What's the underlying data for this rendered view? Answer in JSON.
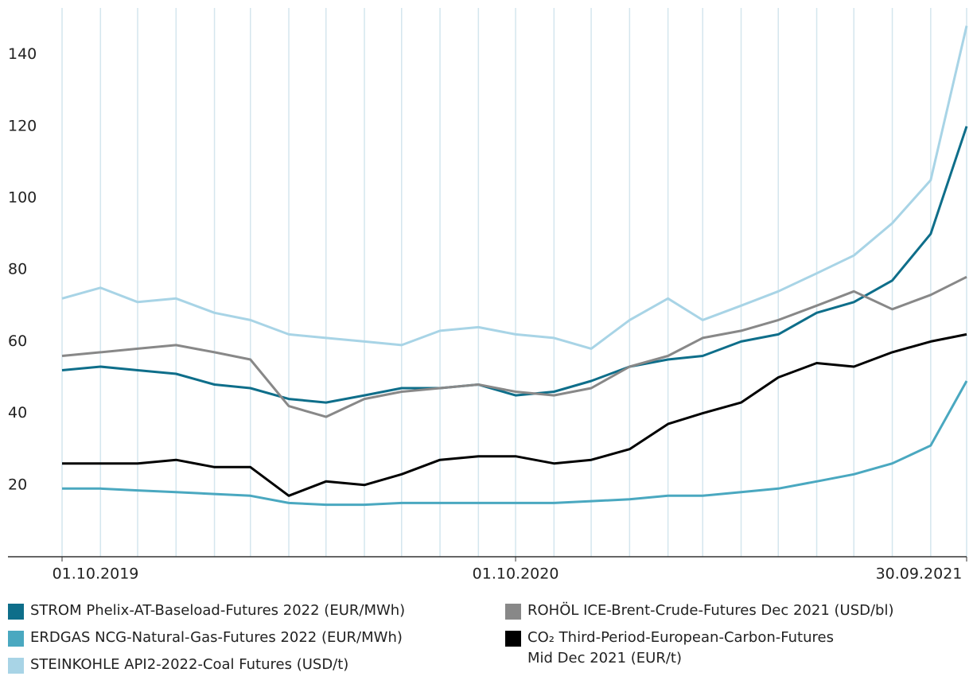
{
  "chart_data": {
    "type": "line",
    "x": [
      "01.10.2019",
      "01.11.2019",
      "01.12.2019",
      "01.01.2020",
      "01.02.2020",
      "01.03.2020",
      "01.04.2020",
      "01.05.2020",
      "01.06.2020",
      "01.07.2020",
      "01.08.2020",
      "01.09.2020",
      "01.10.2020",
      "01.11.2020",
      "01.12.2020",
      "01.01.2021",
      "01.02.2021",
      "01.03.2021",
      "01.04.2021",
      "01.05.2021",
      "01.06.2021",
      "01.07.2021",
      "01.08.2021",
      "01.09.2021",
      "30.09.2021"
    ],
    "xticks": [
      "01.10.2019",
      "01.10.2020",
      "30.09.2021"
    ],
    "ylim": [
      0,
      153
    ],
    "yticks": [
      20,
      40,
      60,
      80,
      100,
      120,
      140
    ],
    "grid": true,
    "series": [
      {
        "name": "STROM Phelix-AT-Baseload-Futures 2022 (EUR/MWh)",
        "color": "#0e6e8a",
        "values": [
          52,
          53,
          52,
          51,
          48,
          47,
          44,
          43,
          45,
          47,
          47,
          48,
          45,
          46,
          49,
          53,
          55,
          56,
          60,
          62,
          68,
          71,
          77,
          90,
          120
        ]
      },
      {
        "name": "ERDGAS NCG-Natural-Gas-Futures 2022 (EUR/MWh)",
        "color": "#4aa8c0",
        "values": [
          19,
          19,
          18.5,
          18,
          17.5,
          17,
          15,
          14.5,
          14.5,
          15,
          15,
          15,
          15,
          15,
          15.5,
          16,
          17,
          17,
          18,
          19,
          21,
          23,
          26,
          31,
          49
        ]
      },
      {
        "name": "STEINKOHLE API2-2022-Coal Futures (USD/t)",
        "color": "#a8d4e6",
        "values": [
          72,
          75,
          71,
          72,
          68,
          66,
          62,
          61,
          60,
          59,
          63,
          64,
          62,
          61,
          58,
          66,
          72,
          66,
          70,
          74,
          79,
          84,
          93,
          105,
          148
        ]
      },
      {
        "name": "ROHÖL ICE-Brent-Crude-Futures Dec 2021 (USD/bl)",
        "color": "#888888",
        "values": [
          56,
          57,
          58,
          59,
          57,
          55,
          42,
          39,
          44,
          46,
          47,
          48,
          46,
          45,
          47,
          53,
          56,
          61,
          63,
          66,
          70,
          74,
          69,
          73,
          78
        ]
      },
      {
        "name": "CO₂ Third-Period-European-Carbon-Futures\nMid Dec 2021 (EUR/t)",
        "color": "#000000",
        "values": [
          26,
          26,
          26,
          27,
          25,
          25,
          17,
          21,
          20,
          23,
          27,
          28,
          28,
          26,
          27,
          30,
          37,
          40,
          43,
          50,
          54,
          53,
          57,
          60,
          62
        ]
      }
    ]
  }
}
